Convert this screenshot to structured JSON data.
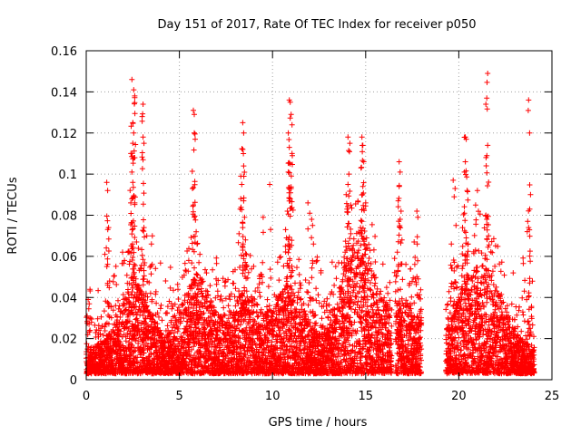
{
  "chart_data": {
    "type": "scatter",
    "title": "Day 151 of 2017, Rate Of TEC Index for receiver p050",
    "xlabel": "GPS time / hours",
    "ylabel": "ROTI / TECUs",
    "xlim": [
      0,
      25
    ],
    "ylim": [
      0,
      0.16
    ],
    "x_ticks": [
      0,
      5,
      10,
      15,
      20,
      25
    ],
    "y_ticks": [
      0,
      0.02,
      0.04,
      0.06,
      0.08,
      0.1,
      0.12,
      0.14,
      0.16
    ],
    "x_tick_labels": [
      "0",
      "5",
      "10",
      "15",
      "20",
      "25"
    ],
    "y_tick_labels": [
      "0",
      "0.02",
      "0.04",
      "0.06",
      "0.08",
      "0.1",
      "0.12",
      "0.14",
      "0.16"
    ],
    "grid": true,
    "marker": "+",
    "color": "#ff0000",
    "gap_hours": [
      18.0,
      19.3
    ],
    "series": [
      {
        "name": "ROTI p050",
        "points": [
          [
            2.45,
            0.146
          ],
          [
            2.55,
            0.141
          ],
          [
            2.6,
            0.138
          ],
          [
            2.5,
            0.125
          ],
          [
            2.55,
            0.12
          ],
          [
            2.5,
            0.115
          ],
          [
            2.4,
            0.11
          ],
          [
            2.6,
            0.108
          ],
          [
            2.45,
            0.101
          ],
          [
            2.5,
            0.096
          ],
          [
            2.45,
            0.088
          ],
          [
            2.6,
            0.086
          ],
          [
            3.05,
            0.134
          ],
          [
            3.0,
            0.128
          ],
          [
            3.05,
            0.118
          ],
          [
            3.1,
            0.115
          ],
          [
            3.05,
            0.107
          ],
          [
            3.1,
            0.074
          ],
          [
            1.1,
            0.096
          ],
          [
            1.15,
            0.092
          ],
          [
            1.2,
            0.074
          ],
          [
            1.0,
            0.061
          ],
          [
            1.25,
            0.048
          ],
          [
            1.15,
            0.046
          ],
          [
            0.1,
            0.039
          ],
          [
            0.2,
            0.044
          ],
          [
            0.05,
            0.031
          ],
          [
            0.15,
            0.027
          ],
          [
            1.95,
            0.062
          ],
          [
            2.05,
            0.058
          ],
          [
            2.3,
            0.062
          ],
          [
            2.7,
            0.067
          ],
          [
            3.25,
            0.07
          ],
          [
            3.55,
            0.07
          ],
          [
            3.5,
            0.066
          ],
          [
            5.75,
            0.131
          ],
          [
            5.8,
            0.129
          ],
          [
            5.85,
            0.117
          ],
          [
            5.8,
            0.12
          ],
          [
            5.7,
            0.093
          ],
          [
            5.75,
            0.085
          ],
          [
            5.8,
            0.079
          ],
          [
            5.9,
            0.072
          ],
          [
            5.95,
            0.066
          ],
          [
            6.1,
            0.061
          ],
          [
            6.05,
            0.057
          ],
          [
            5.5,
            0.058
          ],
          [
            8.4,
            0.125
          ],
          [
            8.45,
            0.12
          ],
          [
            8.4,
            0.112
          ],
          [
            8.45,
            0.104
          ],
          [
            8.3,
            0.099
          ],
          [
            8.35,
            0.095
          ],
          [
            8.45,
            0.087
          ],
          [
            8.5,
            0.079
          ],
          [
            8.4,
            0.074
          ],
          [
            8.55,
            0.068
          ],
          [
            8.6,
            0.061
          ],
          [
            8.2,
            0.071
          ],
          [
            9.85,
            0.095
          ],
          [
            9.5,
            0.079
          ],
          [
            10.9,
            0.136
          ],
          [
            10.95,
            0.135
          ],
          [
            11.0,
            0.129
          ],
          [
            11.05,
            0.124
          ],
          [
            10.85,
            0.12
          ],
          [
            10.9,
            0.113
          ],
          [
            11.05,
            0.11
          ],
          [
            10.95,
            0.105
          ],
          [
            10.85,
            0.101
          ],
          [
            11.0,
            0.093
          ],
          [
            10.95,
            0.088
          ],
          [
            10.8,
            0.082
          ],
          [
            10.7,
            0.073
          ],
          [
            10.75,
            0.069
          ],
          [
            11.9,
            0.086
          ],
          [
            12.0,
            0.081
          ],
          [
            12.1,
            0.078
          ],
          [
            12.15,
            0.075
          ],
          [
            12.2,
            0.066
          ],
          [
            12.4,
            0.058
          ],
          [
            12.6,
            0.053
          ],
          [
            14.05,
            0.118
          ],
          [
            14.15,
            0.115
          ],
          [
            14.1,
            0.1
          ],
          [
            14.05,
            0.095
          ],
          [
            13.95,
            0.09
          ],
          [
            14.2,
            0.085
          ],
          [
            14.0,
            0.083
          ],
          [
            14.1,
            0.076
          ],
          [
            14.2,
            0.071
          ],
          [
            13.9,
            0.062
          ],
          [
            13.85,
            0.057
          ],
          [
            14.8,
            0.118
          ],
          [
            14.85,
            0.114
          ],
          [
            14.9,
            0.106
          ],
          [
            14.75,
            0.103
          ],
          [
            14.85,
            0.094
          ],
          [
            15.0,
            0.086
          ],
          [
            14.9,
            0.083
          ],
          [
            14.8,
            0.077
          ],
          [
            15.05,
            0.069
          ],
          [
            14.95,
            0.061
          ],
          [
            16.8,
            0.106
          ],
          [
            16.85,
            0.101
          ],
          [
            16.8,
            0.094
          ],
          [
            16.75,
            0.087
          ],
          [
            16.9,
            0.082
          ],
          [
            16.85,
            0.078
          ],
          [
            16.95,
            0.068
          ],
          [
            16.7,
            0.062
          ],
          [
            16.55,
            0.059
          ],
          [
            17.75,
            0.082
          ],
          [
            17.8,
            0.079
          ],
          [
            17.6,
            0.067
          ],
          [
            19.7,
            0.097
          ],
          [
            19.8,
            0.093
          ],
          [
            19.75,
            0.089
          ],
          [
            19.85,
            0.075
          ],
          [
            19.6,
            0.066
          ],
          [
            20.35,
            0.118
          ],
          [
            20.4,
            0.117
          ],
          [
            20.35,
            0.106
          ],
          [
            20.3,
            0.101
          ],
          [
            20.45,
            0.092
          ],
          [
            20.3,
            0.081
          ],
          [
            20.2,
            0.074
          ],
          [
            20.4,
            0.069
          ],
          [
            20.5,
            0.066
          ],
          [
            21.55,
            0.149
          ],
          [
            21.5,
            0.137
          ],
          [
            21.45,
            0.134
          ],
          [
            21.55,
            0.114
          ],
          [
            21.45,
            0.08
          ],
          [
            21.5,
            0.078
          ],
          [
            21.6,
            0.07
          ],
          [
            21.0,
            0.092
          ],
          [
            20.9,
            0.085
          ],
          [
            23.75,
            0.136
          ],
          [
            23.8,
            0.12
          ],
          [
            23.85,
            0.09
          ],
          [
            23.7,
            0.077
          ],
          [
            23.75,
            0.074
          ],
          [
            23.9,
            0.035
          ]
        ]
      }
    ]
  }
}
